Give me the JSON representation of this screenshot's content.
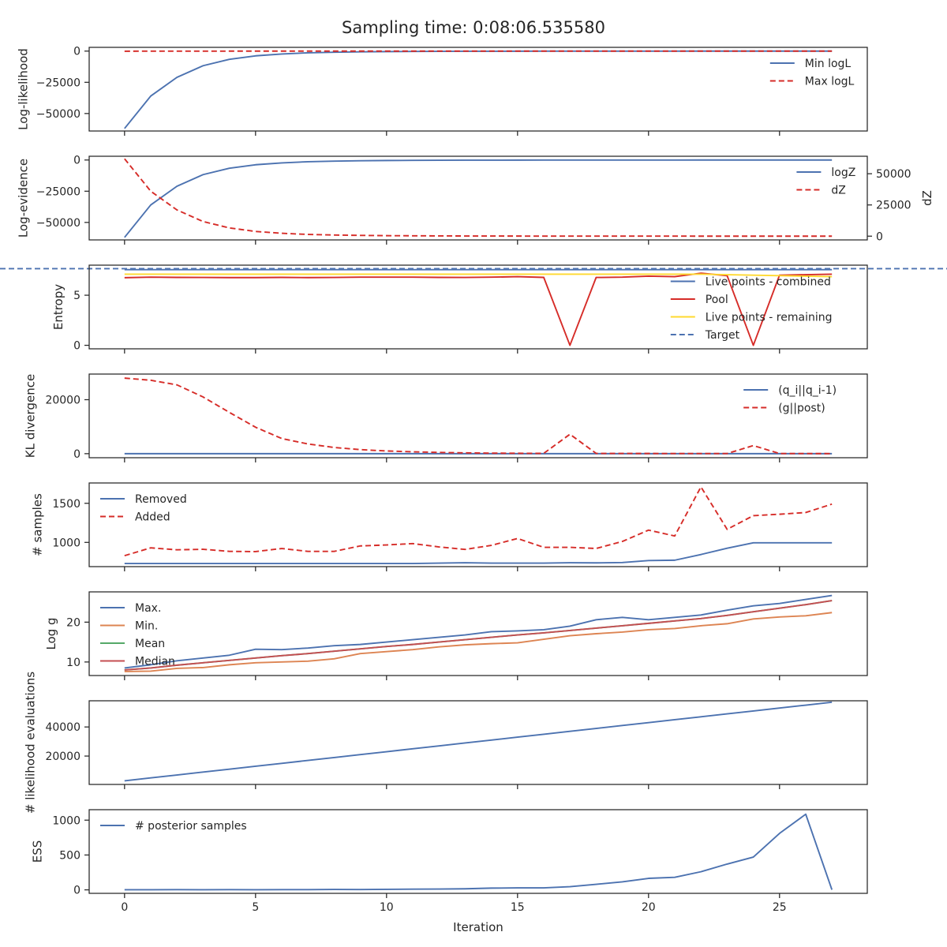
{
  "colors": {
    "blue": "#4c72b0",
    "red": "#d62c28",
    "orange": "#dd8452",
    "green": "#55a868",
    "brown_red": "#c44e52",
    "yellow": "#ffd92f",
    "axes": "#262626"
  },
  "figure": {
    "title": "Sampling time: 0:08:06.535580",
    "xlabel": "Iteration",
    "xticks": [
      0,
      5,
      10,
      15,
      20,
      25
    ]
  },
  "chart_data": [
    {
      "type": "line",
      "ylabel": "Log-likelihood",
      "xlim": [
        -1.35,
        28.35
      ],
      "ylim": [
        -64000,
        3000
      ],
      "yticks": [
        0,
        -25000,
        -50000
      ],
      "legend": "top-right",
      "x": [
        0,
        1,
        2,
        3,
        4,
        5,
        6,
        7,
        8,
        9,
        10,
        11,
        12,
        13,
        14,
        15,
        16,
        17,
        18,
        19,
        20,
        21,
        22,
        23,
        24,
        25,
        26,
        27
      ],
      "series": [
        {
          "name": "Min logL",
          "color": "blue",
          "dash": false,
          "values": [
            -62000,
            -36000,
            -21000,
            -11700,
            -6600,
            -3800,
            -2300,
            -1400,
            -900,
            -600,
            -400,
            -300,
            -200,
            -150,
            -100,
            -80,
            -60,
            -50,
            -40,
            -30,
            -20,
            -15,
            -10,
            -8,
            -5,
            -3,
            -2,
            -1
          ]
        },
        {
          "name": "Max logL",
          "color": "red",
          "dash": true,
          "values": [
            -100,
            -50,
            -30,
            -20,
            -10,
            -5,
            -5,
            -3,
            -2,
            -1,
            0,
            0,
            0,
            0,
            0,
            0,
            0,
            0,
            0,
            0,
            0,
            0,
            0,
            0,
            0,
            0,
            0,
            0
          ]
        }
      ]
    },
    {
      "type": "line",
      "ylabel": "Log-evidence",
      "ylabel2": "dZ",
      "xlim": [
        -1.35,
        28.35
      ],
      "ylim": [
        -64000,
        3000
      ],
      "yticks": [
        0,
        -25000,
        -50000
      ],
      "ylim2": [
        -3000,
        64000
      ],
      "yticks2": [
        0,
        25000,
        50000
      ],
      "legend": "top-right",
      "x": [
        0,
        1,
        2,
        3,
        4,
        5,
        6,
        7,
        8,
        9,
        10,
        11,
        12,
        13,
        14,
        15,
        16,
        17,
        18,
        19,
        20,
        21,
        22,
        23,
        24,
        25,
        26,
        27
      ],
      "series": [
        {
          "name": "logZ",
          "color": "blue",
          "dash": false,
          "axis": "left",
          "values": [
            -62000,
            -36000,
            -21000,
            -11700,
            -6600,
            -3800,
            -2300,
            -1400,
            -900,
            -600,
            -400,
            -300,
            -200,
            -150,
            -100,
            -80,
            -60,
            -50,
            -40,
            -30,
            -20,
            -15,
            -10,
            -8,
            -5,
            -3,
            -2,
            -1
          ]
        },
        {
          "name": "dZ",
          "color": "red",
          "dash": true,
          "axis": "right",
          "values": [
            62000,
            36000,
            21000,
            11700,
            6600,
            3800,
            2300,
            1400,
            900,
            600,
            400,
            300,
            200,
            150,
            100,
            80,
            60,
            50,
            40,
            30,
            20,
            15,
            10,
            8,
            5,
            3,
            2,
            1
          ]
        }
      ]
    },
    {
      "type": "line",
      "ylabel": "Entropy",
      "xlim": [
        -1.35,
        28.35
      ],
      "ylim": [
        -0.35,
        8.0
      ],
      "yticks": [
        0,
        5
      ],
      "legend": "bottom-right",
      "x": [
        0,
        1,
        2,
        3,
        4,
        5,
        6,
        7,
        8,
        9,
        10,
        11,
        12,
        13,
        14,
        15,
        16,
        17,
        18,
        19,
        20,
        21,
        22,
        23,
        24,
        25,
        26,
        27
      ],
      "series": [
        {
          "name": "Live points - combined",
          "color": "blue",
          "dash": false,
          "values": [
            7.55,
            7.55,
            7.55,
            7.55,
            7.55,
            7.55,
            7.55,
            7.55,
            7.55,
            7.55,
            7.55,
            7.55,
            7.55,
            7.55,
            7.55,
            7.55,
            7.55,
            7.55,
            7.55,
            7.55,
            7.55,
            7.55,
            7.55,
            7.55,
            7.55,
            7.55,
            7.55,
            7.55
          ]
        },
        {
          "name": "Pool",
          "color": "red",
          "dash": false,
          "values": [
            6.75,
            6.8,
            6.78,
            6.77,
            6.76,
            6.76,
            6.78,
            6.76,
            6.77,
            6.8,
            6.8,
            6.8,
            6.78,
            6.77,
            6.8,
            6.85,
            6.78,
            0.0,
            6.77,
            6.8,
            6.9,
            6.85,
            7.2,
            6.95,
            0.0,
            7.0,
            7.05,
            7.1
          ]
        },
        {
          "name": "Live points - remaining",
          "color": "yellow",
          "dash": false,
          "values": [
            7.1,
            7.1,
            7.1,
            7.1,
            7.1,
            7.1,
            7.1,
            7.1,
            7.1,
            7.1,
            7.1,
            7.1,
            7.1,
            7.1,
            7.1,
            7.1,
            7.1,
            7.1,
            7.1,
            7.1,
            7.1,
            7.1,
            7.1,
            7.05,
            7.0,
            6.95,
            6.9,
            6.85
          ]
        },
        {
          "name": "Target",
          "color": "blue",
          "dash": true,
          "hline": 7.65
        }
      ]
    },
    {
      "type": "line",
      "ylabel": "KL divergence",
      "xlim": [
        -1.35,
        28.35
      ],
      "ylim": [
        -1500,
        29500
      ],
      "yticks": [
        0,
        20000
      ],
      "legend": "top-right",
      "x": [
        0,
        1,
        2,
        3,
        4,
        5,
        6,
        7,
        8,
        9,
        10,
        11,
        12,
        13,
        14,
        15,
        16,
        17,
        18,
        19,
        20,
        21,
        22,
        23,
        24,
        25,
        26,
        27
      ],
      "series": [
        {
          "name": "(q_i||q_i-1)",
          "color": "blue",
          "dash": false,
          "values": [
            0,
            0,
            0,
            0,
            0,
            0,
            0,
            0,
            0,
            0,
            0,
            0,
            0,
            0,
            0,
            0,
            0,
            0,
            0,
            0,
            0,
            0,
            0,
            0,
            0,
            0,
            0,
            0
          ]
        },
        {
          "name": "(g||post)",
          "color": "red",
          "dash": true,
          "values": [
            28000,
            27200,
            25500,
            21000,
            15300,
            9800,
            5600,
            3600,
            2300,
            1500,
            1000,
            700,
            450,
            300,
            200,
            150,
            100,
            7200,
            100,
            80,
            70,
            60,
            50,
            50,
            3000,
            50,
            40,
            30
          ]
        }
      ]
    },
    {
      "type": "line",
      "ylabel": "# samples",
      "xlim": [
        -1.35,
        28.35
      ],
      "ylim": [
        690,
        1760
      ],
      "yticks": [
        1000,
        1500
      ],
      "legend": "top-left",
      "x": [
        0,
        1,
        2,
        3,
        4,
        5,
        6,
        7,
        8,
        9,
        10,
        11,
        12,
        13,
        14,
        15,
        16,
        17,
        18,
        19,
        20,
        21,
        22,
        23,
        24,
        25,
        26,
        27
      ],
      "series": [
        {
          "name": "Removed",
          "color": "blue",
          "dash": false,
          "values": [
            730,
            730,
            730,
            730,
            730,
            730,
            730,
            730,
            730,
            730,
            730,
            730,
            735,
            740,
            735,
            735,
            735,
            740,
            738,
            742,
            768,
            772,
            845,
            925,
            995,
            995,
            995,
            995
          ]
        },
        {
          "name": "Added",
          "color": "red",
          "dash": true,
          "values": [
            830,
            930,
            905,
            912,
            885,
            882,
            922,
            885,
            885,
            955,
            967,
            985,
            942,
            910,
            962,
            1050,
            937,
            937,
            922,
            1012,
            1157,
            1082,
            1710,
            1167,
            1342,
            1360,
            1382,
            1490
          ]
        }
      ]
    },
    {
      "type": "line",
      "ylabel": "Log g",
      "xlim": [
        -1.35,
        28.35
      ],
      "ylim": [
        6.6,
        27.6
      ],
      "yticks": [
        10,
        20
      ],
      "legend": "top-left",
      "x": [
        0,
        1,
        2,
        3,
        4,
        5,
        6,
        7,
        8,
        9,
        10,
        11,
        12,
        13,
        14,
        15,
        16,
        17,
        18,
        19,
        20,
        21,
        22,
        23,
        24,
        25,
        26,
        27
      ],
      "series": [
        {
          "name": "Max.",
          "color": "blue",
          "dash": false,
          "values": [
            8.5,
            9.3,
            10.3,
            11.0,
            11.7,
            13.2,
            13.1,
            13.5,
            14.1,
            14.4,
            15.0,
            15.6,
            16.2,
            16.8,
            17.6,
            17.8,
            18.1,
            19.0,
            20.6,
            21.2,
            20.6,
            21.2,
            21.8,
            23.0,
            24.1,
            24.7,
            25.7,
            26.7
          ]
        },
        {
          "name": "Min.",
          "color": "orange",
          "dash": false,
          "values": [
            7.6,
            7.7,
            8.4,
            8.6,
            9.3,
            9.8,
            10.0,
            10.2,
            10.8,
            12.1,
            12.6,
            13.1,
            13.8,
            14.3,
            14.6,
            14.8,
            15.7,
            16.6,
            17.1,
            17.5,
            18.1,
            18.4,
            19.1,
            19.6,
            20.8,
            21.3,
            21.6,
            22.4
          ]
        },
        {
          "name": "Mean",
          "color": "green",
          "dash": false,
          "values": [
            8.0,
            8.5,
            9.2,
            9.8,
            10.4,
            11.0,
            11.6,
            12.1,
            12.7,
            13.3,
            13.9,
            14.4,
            15.0,
            15.6,
            16.2,
            16.8,
            17.3,
            17.9,
            18.5,
            19.1,
            19.7,
            20.3,
            20.9,
            21.7,
            22.6,
            23.5,
            24.4,
            25.4
          ]
        },
        {
          "name": "Median",
          "color": "brown_red",
          "dash": false,
          "values": [
            8.0,
            8.5,
            9.2,
            9.8,
            10.4,
            11.0,
            11.6,
            12.1,
            12.7,
            13.3,
            13.9,
            14.4,
            15.0,
            15.6,
            16.2,
            16.8,
            17.3,
            17.9,
            18.5,
            19.1,
            19.7,
            20.3,
            20.9,
            21.7,
            22.6,
            23.5,
            24.4,
            25.4
          ]
        }
      ]
    },
    {
      "type": "line",
      "ylabel": "# likelihood evaluations",
      "xlim": [
        -1.35,
        28.35
      ],
      "ylim": [
        500,
        58000
      ],
      "yticks": [
        20000,
        40000
      ],
      "legend": "none",
      "x": [
        0,
        1,
        2,
        3,
        4,
        5,
        6,
        7,
        8,
        9,
        10,
        11,
        12,
        13,
        14,
        15,
        16,
        17,
        18,
        19,
        20,
        21,
        22,
        23,
        24,
        25,
        26,
        27
      ],
      "series": [
        {
          "name": "",
          "color": "blue",
          "dash": false,
          "values": [
            3000,
            5000,
            7000,
            9000,
            11000,
            13000,
            15000,
            17000,
            19000,
            21000,
            23000,
            25000,
            27000,
            29000,
            31000,
            33000,
            35000,
            37000,
            39000,
            41000,
            43000,
            45000,
            47000,
            49000,
            51000,
            53000,
            55000,
            57000
          ]
        }
      ]
    },
    {
      "type": "line",
      "ylabel": "ESS",
      "xlim": [
        -1.35,
        28.35
      ],
      "ylim": [
        -50,
        1150
      ],
      "yticks": [
        0,
        500,
        1000
      ],
      "legend": "top-left",
      "x": [
        0,
        1,
        2,
        3,
        4,
        5,
        6,
        7,
        8,
        9,
        10,
        11,
        12,
        13,
        14,
        15,
        16,
        17,
        18,
        19,
        20,
        21,
        22,
        23,
        24,
        25,
        26,
        27
      ],
      "series": [
        {
          "name": "# posterior samples",
          "color": "blue",
          "dash": false,
          "values": [
            2,
            2,
            3,
            2,
            3,
            2,
            3,
            3,
            6,
            5,
            7,
            10,
            12,
            15,
            25,
            28,
            28,
            45,
            80,
            115,
            165,
            180,
            260,
            370,
            470,
            810,
            1085,
            2
          ]
        }
      ]
    }
  ]
}
